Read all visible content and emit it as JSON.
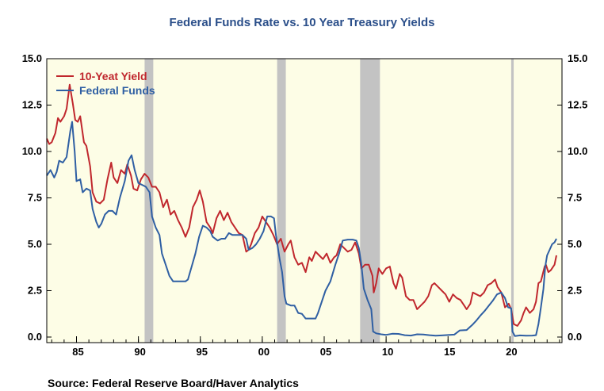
{
  "chart_data": {
    "type": "line",
    "title": "Federal Funds Rate vs. 10 Year Treasury Yields",
    "source": "Source:  Federal Reserve Board/Haver Analytics",
    "xlim": [
      1982.6,
      2024.2
    ],
    "ylim": [
      -0.3,
      15.0
    ],
    "x_ticks": [
      {
        "value": 1985,
        "label": "85"
      },
      {
        "value": 1990,
        "label": "90"
      },
      {
        "value": 1995,
        "label": "95"
      },
      {
        "value": 2000,
        "label": "00"
      },
      {
        "value": 2005,
        "label": "05"
      },
      {
        "value": 2010,
        "label": "10"
      },
      {
        "value": 2015,
        "label": "15"
      },
      {
        "value": 2020,
        "label": "20"
      }
    ],
    "y_ticks": [
      {
        "value": 0.0,
        "label": "0.0"
      },
      {
        "value": 2.5,
        "label": "2.5"
      },
      {
        "value": 5.0,
        "label": "5.0"
      },
      {
        "value": 7.5,
        "label": "7.5"
      },
      {
        "value": 10.0,
        "label": "10.0"
      },
      {
        "value": 12.5,
        "label": "12.5"
      },
      {
        "value": 15.0,
        "label": "15.0"
      }
    ],
    "recessions": [
      [
        1990.5,
        1991.2
      ],
      [
        2001.2,
        2001.9
      ],
      [
        2007.9,
        2009.5
      ],
      [
        2020.1,
        2020.3
      ]
    ],
    "colors": {
      "plot_bg": "#fdfde6",
      "recession": "#c3c3c3",
      "axis": "#000000",
      "title": "#2b4f8a"
    },
    "legend_position": "top-left",
    "series": [
      {
        "name": "10-Yeat Yield",
        "color": "#c0272d",
        "points": [
          [
            1982.6,
            10.7
          ],
          [
            1982.8,
            10.4
          ],
          [
            1983.0,
            10.5
          ],
          [
            1983.3,
            11.0
          ],
          [
            1983.5,
            11.8
          ],
          [
            1983.7,
            11.6
          ],
          [
            1984.0,
            11.9
          ],
          [
            1984.2,
            12.3
          ],
          [
            1984.45,
            13.6
          ],
          [
            1984.7,
            12.6
          ],
          [
            1984.9,
            11.7
          ],
          [
            1985.1,
            11.6
          ],
          [
            1985.3,
            11.9
          ],
          [
            1985.6,
            10.5
          ],
          [
            1985.8,
            10.3
          ],
          [
            1986.1,
            9.2
          ],
          [
            1986.3,
            7.8
          ],
          [
            1986.6,
            7.3
          ],
          [
            1986.9,
            7.2
          ],
          [
            1987.2,
            7.4
          ],
          [
            1987.5,
            8.5
          ],
          [
            1987.8,
            9.4
          ],
          [
            1988.0,
            8.6
          ],
          [
            1988.3,
            8.3
          ],
          [
            1988.6,
            9.0
          ],
          [
            1988.9,
            8.8
          ],
          [
            1989.1,
            9.3
          ],
          [
            1989.4,
            8.7
          ],
          [
            1989.6,
            8.0
          ],
          [
            1989.9,
            7.9
          ],
          [
            1990.2,
            8.5
          ],
          [
            1990.5,
            8.8
          ],
          [
            1990.8,
            8.6
          ],
          [
            1991.1,
            8.1
          ],
          [
            1991.4,
            8.1
          ],
          [
            1991.7,
            7.8
          ],
          [
            1992.0,
            7.0
          ],
          [
            1992.3,
            7.4
          ],
          [
            1992.6,
            6.6
          ],
          [
            1992.9,
            6.8
          ],
          [
            1993.2,
            6.3
          ],
          [
            1993.5,
            5.9
          ],
          [
            1993.8,
            5.4
          ],
          [
            1994.1,
            5.9
          ],
          [
            1994.4,
            7.0
          ],
          [
            1994.7,
            7.4
          ],
          [
            1994.95,
            7.9
          ],
          [
            1995.2,
            7.3
          ],
          [
            1995.5,
            6.2
          ],
          [
            1995.8,
            5.9
          ],
          [
            1996.0,
            5.6
          ],
          [
            1996.3,
            6.4
          ],
          [
            1996.6,
            6.8
          ],
          [
            1996.9,
            6.3
          ],
          [
            1997.2,
            6.7
          ],
          [
            1997.5,
            6.2
          ],
          [
            1997.8,
            5.9
          ],
          [
            1998.1,
            5.6
          ],
          [
            1998.4,
            5.5
          ],
          [
            1998.7,
            4.6
          ],
          [
            1998.9,
            4.7
          ],
          [
            1999.1,
            5.0
          ],
          [
            1999.4,
            5.6
          ],
          [
            1999.7,
            5.9
          ],
          [
            2000.0,
            6.5
          ],
          [
            2000.3,
            6.2
          ],
          [
            2000.6,
            5.9
          ],
          [
            2000.9,
            5.5
          ],
          [
            2001.2,
            5.0
          ],
          [
            2001.5,
            5.3
          ],
          [
            2001.8,
            4.6
          ],
          [
            2002.1,
            5.0
          ],
          [
            2002.3,
            5.2
          ],
          [
            2002.6,
            4.3
          ],
          [
            2002.9,
            3.9
          ],
          [
            2003.2,
            4.0
          ],
          [
            2003.5,
            3.5
          ],
          [
            2003.8,
            4.3
          ],
          [
            2004.0,
            4.1
          ],
          [
            2004.3,
            4.6
          ],
          [
            2004.6,
            4.4
          ],
          [
            2004.9,
            4.2
          ],
          [
            2005.2,
            4.5
          ],
          [
            2005.5,
            4.0
          ],
          [
            2005.8,
            4.3
          ],
          [
            2006.0,
            4.4
          ],
          [
            2006.3,
            5.0
          ],
          [
            2006.6,
            4.8
          ],
          [
            2006.9,
            4.6
          ],
          [
            2007.2,
            4.7
          ],
          [
            2007.5,
            5.1
          ],
          [
            2007.8,
            4.5
          ],
          [
            2008.0,
            3.7
          ],
          [
            2008.3,
            3.9
          ],
          [
            2008.6,
            3.9
          ],
          [
            2008.9,
            3.3
          ],
          [
            2009.0,
            2.4
          ],
          [
            2009.2,
            2.9
          ],
          [
            2009.4,
            3.7
          ],
          [
            2009.7,
            3.4
          ],
          [
            2010.0,
            3.7
          ],
          [
            2010.3,
            3.8
          ],
          [
            2010.6,
            2.9
          ],
          [
            2010.8,
            2.6
          ],
          [
            2011.1,
            3.4
          ],
          [
            2011.3,
            3.2
          ],
          [
            2011.6,
            2.2
          ],
          [
            2011.9,
            2.0
          ],
          [
            2012.2,
            2.0
          ],
          [
            2012.5,
            1.5
          ],
          [
            2012.8,
            1.7
          ],
          [
            2013.1,
            1.9
          ],
          [
            2013.4,
            2.2
          ],
          [
            2013.7,
            2.8
          ],
          [
            2013.9,
            2.9
          ],
          [
            2014.2,
            2.7
          ],
          [
            2014.5,
            2.5
          ],
          [
            2014.8,
            2.3
          ],
          [
            2015.1,
            1.9
          ],
          [
            2015.4,
            2.3
          ],
          [
            2015.7,
            2.1
          ],
          [
            2016.0,
            2.0
          ],
          [
            2016.3,
            1.7
          ],
          [
            2016.5,
            1.5
          ],
          [
            2016.8,
            1.8
          ],
          [
            2017.0,
            2.4
          ],
          [
            2017.3,
            2.3
          ],
          [
            2017.6,
            2.2
          ],
          [
            2017.9,
            2.4
          ],
          [
            2018.2,
            2.8
          ],
          [
            2018.5,
            2.9
          ],
          [
            2018.8,
            3.1
          ],
          [
            2019.0,
            2.7
          ],
          [
            2019.3,
            2.4
          ],
          [
            2019.6,
            1.6
          ],
          [
            2019.9,
            1.8
          ],
          [
            2020.1,
            1.5
          ],
          [
            2020.3,
            0.7
          ],
          [
            2020.6,
            0.6
          ],
          [
            2020.9,
            0.9
          ],
          [
            2021.1,
            1.3
          ],
          [
            2021.3,
            1.6
          ],
          [
            2021.6,
            1.3
          ],
          [
            2021.9,
            1.5
          ],
          [
            2022.1,
            1.9
          ],
          [
            2022.3,
            2.9
          ],
          [
            2022.5,
            3.0
          ],
          [
            2022.8,
            3.8
          ],
          [
            2022.9,
            3.9
          ],
          [
            2023.1,
            3.5
          ],
          [
            2023.3,
            3.6
          ],
          [
            2023.6,
            3.9
          ],
          [
            2023.75,
            4.4
          ]
        ]
      },
      {
        "name": "Federal Funds",
        "color": "#2f5fa3",
        "points": [
          [
            1982.6,
            8.7
          ],
          [
            1982.9,
            9.0
          ],
          [
            1983.2,
            8.6
          ],
          [
            1983.4,
            8.9
          ],
          [
            1983.6,
            9.5
          ],
          [
            1983.9,
            9.4
          ],
          [
            1984.2,
            9.7
          ],
          [
            1984.5,
            11.1
          ],
          [
            1984.65,
            11.6
          ],
          [
            1984.85,
            10.0
          ],
          [
            1985.0,
            8.4
          ],
          [
            1985.3,
            8.5
          ],
          [
            1985.5,
            7.8
          ],
          [
            1985.8,
            8.0
          ],
          [
            1986.1,
            7.9
          ],
          [
            1986.3,
            6.9
          ],
          [
            1986.6,
            6.2
          ],
          [
            1986.8,
            5.9
          ],
          [
            1987.0,
            6.1
          ],
          [
            1987.3,
            6.6
          ],
          [
            1987.6,
            6.8
          ],
          [
            1987.9,
            6.8
          ],
          [
            1988.2,
            6.6
          ],
          [
            1988.5,
            7.5
          ],
          [
            1988.9,
            8.4
          ],
          [
            1989.2,
            9.5
          ],
          [
            1989.45,
            9.8
          ],
          [
            1989.7,
            9.0
          ],
          [
            1990.0,
            8.3
          ],
          [
            1990.3,
            8.2
          ],
          [
            1990.6,
            8.1
          ],
          [
            1990.9,
            7.8
          ],
          [
            1991.1,
            6.5
          ],
          [
            1991.4,
            5.9
          ],
          [
            1991.7,
            5.5
          ],
          [
            1991.9,
            4.5
          ],
          [
            1992.2,
            3.9
          ],
          [
            1992.5,
            3.3
          ],
          [
            1992.8,
            3.0
          ],
          [
            1993.2,
            3.0
          ],
          [
            1993.5,
            3.0
          ],
          [
            1993.8,
            3.0
          ],
          [
            1994.0,
            3.1
          ],
          [
            1994.3,
            3.8
          ],
          [
            1994.6,
            4.5
          ],
          [
            1994.9,
            5.4
          ],
          [
            1995.2,
            6.0
          ],
          [
            1995.5,
            5.9
          ],
          [
            1995.8,
            5.7
          ],
          [
            1996.0,
            5.4
          ],
          [
            1996.4,
            5.2
          ],
          [
            1996.7,
            5.3
          ],
          [
            1997.0,
            5.3
          ],
          [
            1997.3,
            5.6
          ],
          [
            1997.6,
            5.5
          ],
          [
            1998.0,
            5.5
          ],
          [
            1998.4,
            5.5
          ],
          [
            1998.7,
            5.3
          ],
          [
            1998.9,
            4.7
          ],
          [
            1999.2,
            4.8
          ],
          [
            1999.5,
            5.0
          ],
          [
            1999.8,
            5.3
          ],
          [
            2000.1,
            5.7
          ],
          [
            2000.4,
            6.5
          ],
          [
            2000.7,
            6.5
          ],
          [
            2000.95,
            6.4
          ],
          [
            2001.1,
            5.5
          ],
          [
            2001.4,
            4.2
          ],
          [
            2001.6,
            3.5
          ],
          [
            2001.8,
            2.2
          ],
          [
            2001.95,
            1.8
          ],
          [
            2002.3,
            1.7
          ],
          [
            2002.6,
            1.7
          ],
          [
            2002.9,
            1.3
          ],
          [
            2003.2,
            1.25
          ],
          [
            2003.5,
            1.0
          ],
          [
            2003.9,
            1.0
          ],
          [
            2004.3,
            1.0
          ],
          [
            2004.5,
            1.3
          ],
          [
            2004.8,
            1.9
          ],
          [
            2005.1,
            2.5
          ],
          [
            2005.5,
            3.0
          ],
          [
            2005.9,
            3.9
          ],
          [
            2006.2,
            4.5
          ],
          [
            2006.5,
            5.2
          ],
          [
            2006.9,
            5.25
          ],
          [
            2007.3,
            5.25
          ],
          [
            2007.6,
            5.2
          ],
          [
            2007.8,
            4.8
          ],
          [
            2008.0,
            3.9
          ],
          [
            2008.2,
            2.6
          ],
          [
            2008.5,
            2.0
          ],
          [
            2008.8,
            1.5
          ],
          [
            2008.95,
            0.3
          ],
          [
            2009.2,
            0.2
          ],
          [
            2009.6,
            0.15
          ],
          [
            2010.0,
            0.12
          ],
          [
            2010.5,
            0.18
          ],
          [
            2011.0,
            0.17
          ],
          [
            2011.5,
            0.1
          ],
          [
            2012.0,
            0.08
          ],
          [
            2012.5,
            0.15
          ],
          [
            2013.0,
            0.14
          ],
          [
            2013.5,
            0.1
          ],
          [
            2014.0,
            0.07
          ],
          [
            2014.5,
            0.09
          ],
          [
            2015.0,
            0.11
          ],
          [
            2015.5,
            0.13
          ],
          [
            2015.95,
            0.36
          ],
          [
            2016.5,
            0.38
          ],
          [
            2016.95,
            0.65
          ],
          [
            2017.3,
            0.9
          ],
          [
            2017.6,
            1.15
          ],
          [
            2017.95,
            1.4
          ],
          [
            2018.3,
            1.7
          ],
          [
            2018.6,
            1.95
          ],
          [
            2018.95,
            2.3
          ],
          [
            2019.3,
            2.4
          ],
          [
            2019.6,
            2.1
          ],
          [
            2019.85,
            1.6
          ],
          [
            2020.1,
            1.55
          ],
          [
            2020.2,
            0.3
          ],
          [
            2020.4,
            0.05
          ],
          [
            2020.8,
            0.09
          ],
          [
            2021.3,
            0.07
          ],
          [
            2021.8,
            0.08
          ],
          [
            2022.1,
            0.1
          ],
          [
            2022.3,
            0.7
          ],
          [
            2022.5,
            1.6
          ],
          [
            2022.7,
            2.6
          ],
          [
            2022.85,
            3.8
          ],
          [
            2023.0,
            4.4
          ],
          [
            2023.2,
            4.7
          ],
          [
            2023.4,
            5.0
          ],
          [
            2023.6,
            5.1
          ],
          [
            2023.75,
            5.3
          ]
        ]
      }
    ]
  }
}
